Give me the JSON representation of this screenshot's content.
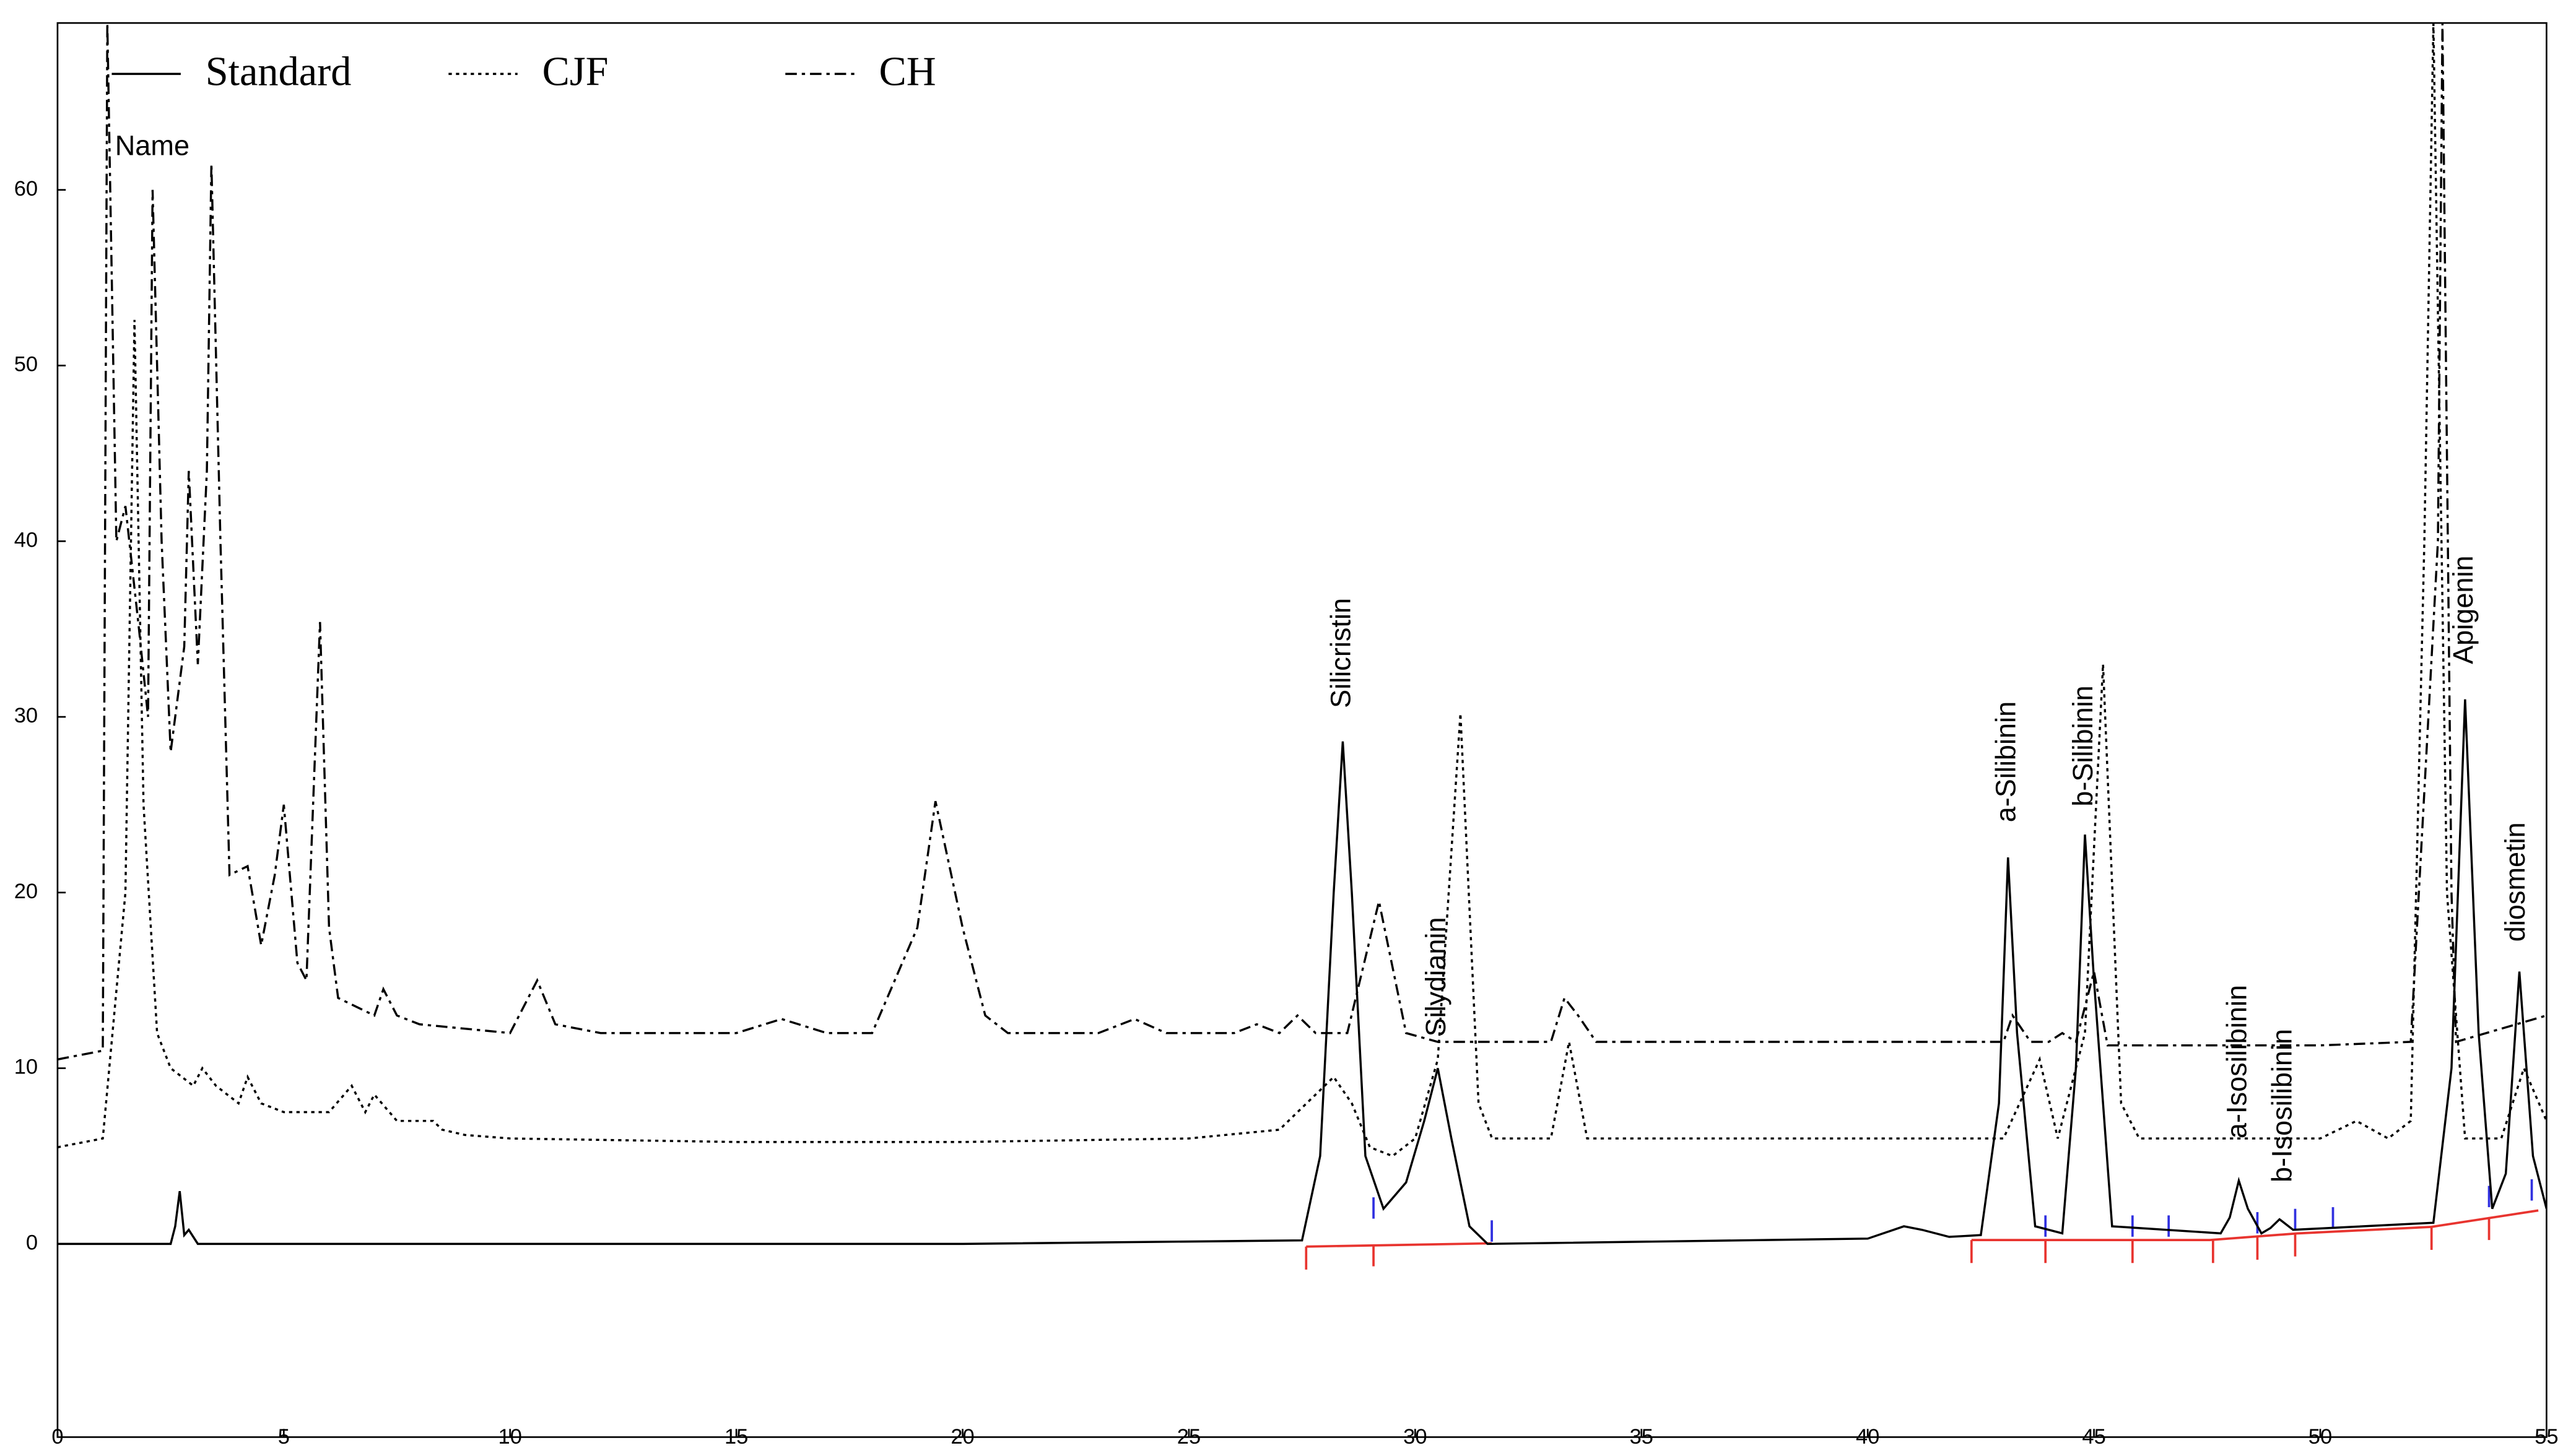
{
  "chart_data": {
    "type": "line",
    "xlim": [
      0,
      55
    ],
    "ylim": [
      -11,
      69.5
    ],
    "xticks": [
      0,
      5,
      10,
      15,
      20,
      25,
      30,
      35,
      40,
      45,
      50,
      55
    ],
    "yticks": [
      0,
      10,
      20,
      30,
      40,
      50,
      60
    ],
    "legend": "top-left",
    "series": [
      {
        "name": "Standard",
        "color": "#000000",
        "dash": "solid",
        "x": [
          0,
          2.5,
          2.6,
          2.7,
          2.8,
          2.9,
          3.1,
          10,
          20,
          27.5,
          27.9,
          28.2,
          28.4,
          28.6,
          28.9,
          29.3,
          29.8,
          30.2,
          30.5,
          30.8,
          31.2,
          31.6,
          40,
          40.8,
          41.2,
          41.8,
          42.5,
          42.9,
          43.1,
          43.3,
          43.7,
          44.3,
          44.6,
          44.8,
          45.0,
          45.4,
          47.8,
          48.0,
          48.2,
          48.4,
          48.7,
          48.9,
          49.1,
          49.4,
          52.5,
          52.9,
          53.2,
          53.5,
          53.8,
          54.1,
          54.4,
          54.7,
          55
        ],
        "values": [
          0,
          0,
          1,
          3,
          0.5,
          0.8,
          0,
          0,
          0,
          0.2,
          5,
          20,
          28.6,
          20,
          5,
          2,
          3.5,
          7,
          10,
          6,
          1,
          0,
          0.3,
          1,
          0.8,
          0.4,
          0.5,
          8,
          22,
          12,
          1,
          0.6,
          10,
          23.3,
          15,
          1,
          0.6,
          1.5,
          3.6,
          2,
          0.6,
          0.9,
          1.4,
          0.8,
          1.2,
          10,
          31,
          12,
          2,
          4,
          15.5,
          5,
          2
        ]
      },
      {
        "name": "CJF",
        "color": "#000000",
        "dash": "dotted",
        "x": [
          0,
          1.0,
          1.5,
          1.7,
          1.9,
          2.2,
          2.5,
          3.0,
          3.2,
          3.5,
          4.0,
          4.2,
          4.5,
          5.0,
          6.0,
          6.5,
          6.8,
          7.0,
          7.5,
          8.3,
          8.5,
          9.0,
          10,
          15,
          20,
          25,
          27,
          28.2,
          28.6,
          29.0,
          29.5,
          30.0,
          30.5,
          31.0,
          31.4,
          31.7,
          33.0,
          33.4,
          33.8,
          35,
          40,
          43,
          43.8,
          44.2,
          44.8,
          45.2,
          45.6,
          46,
          50,
          50.8,
          51.5,
          52.0,
          52.3,
          52.5,
          52.8,
          53.2,
          54.0,
          54.5,
          55
        ],
        "values": [
          5.5,
          6,
          20,
          52.6,
          25,
          12,
          10,
          9,
          10,
          9,
          8,
          9.5,
          8,
          7.5,
          7.5,
          9,
          7.5,
          8.5,
          7,
          7,
          6.5,
          6.2,
          6,
          5.8,
          5.8,
          6,
          6.5,
          9.5,
          8,
          5.5,
          5,
          6,
          10.5,
          30.2,
          8,
          6,
          6,
          11.5,
          6,
          6,
          6,
          6,
          10.5,
          6,
          12,
          33,
          8,
          6,
          6,
          7,
          6,
          7,
          40,
          69.5,
          20,
          6,
          6,
          10,
          7
        ]
      },
      {
        "name": "CH",
        "color": "#000000",
        "dash": "dashdot",
        "x": [
          0,
          1.0,
          1.1,
          1.3,
          1.5,
          1.8,
          2.0,
          2.1,
          2.3,
          2.5,
          2.8,
          2.9,
          3.1,
          3.3,
          3.4,
          3.6,
          3.8,
          4.2,
          4.5,
          4.8,
          5.0,
          5.3,
          5.5,
          5.8,
          6.0,
          6.2,
          7.0,
          7.2,
          7.5,
          8.0,
          10,
          10.6,
          11,
          12,
          15,
          16,
          17,
          18,
          19,
          19.4,
          20,
          20.5,
          21,
          23,
          23.8,
          24.5,
          26,
          26.5,
          27,
          27.4,
          27.8,
          28.5,
          29.2,
          29.8,
          30.5,
          33.0,
          33.3,
          33.6,
          34,
          40,
          43,
          43.2,
          43.6,
          44.0,
          44.3,
          44.6,
          45.0,
          45.3,
          50,
          52,
          52.6,
          52.7,
          52.9,
          53,
          55
        ],
        "values": [
          10.5,
          11,
          69.5,
          40,
          42,
          35,
          30,
          60,
          40,
          28,
          34,
          44,
          33,
          44,
          61.5,
          40,
          21,
          21.5,
          17,
          21,
          25,
          16,
          15,
          35.4,
          18,
          14,
          13,
          14.5,
          13,
          12.5,
          12,
          15,
          12.5,
          12,
          12,
          12.8,
          12,
          12,
          18,
          25.2,
          18,
          13,
          12,
          12,
          12.8,
          12,
          12,
          12.5,
          12,
          13,
          12,
          12,
          19.5,
          12,
          11.5,
          11.5,
          14,
          13,
          11.5,
          11.5,
          11.5,
          13,
          11.5,
          11.5,
          12,
          11.5,
          15.5,
          11.3,
          11.3,
          11.5,
          40,
          69.5,
          20,
          11.5,
          13
        ]
      }
    ],
    "annotations": [
      {
        "text": "Name",
        "x": 1.27,
        "y": 62.4,
        "vertical": false
      },
      {
        "text": "Silicristin",
        "x": 28.4,
        "y": 30.5,
        "vertical": true
      },
      {
        "text": "Silydianin",
        "x": 30.5,
        "y": 11.8,
        "vertical": true
      },
      {
        "text": "a-Silibinin",
        "x": 43.1,
        "y": 24,
        "vertical": true
      },
      {
        "text": "b-Silibinin",
        "x": 44.8,
        "y": 24.9,
        "vertical": true
      },
      {
        "text": "a-Isosilibinin",
        "x": 48.2,
        "y": 6,
        "vertical": true
      },
      {
        "text": "b-Isosilibinin",
        "x": 49.2,
        "y": 3.5,
        "vertical": true
      },
      {
        "text": "Apigenin",
        "x": 53.2,
        "y": 33,
        "vertical": true
      },
      {
        "text": "diosmetin",
        "x": 54.35,
        "y": 17.2,
        "vertical": true
      }
    ]
  }
}
